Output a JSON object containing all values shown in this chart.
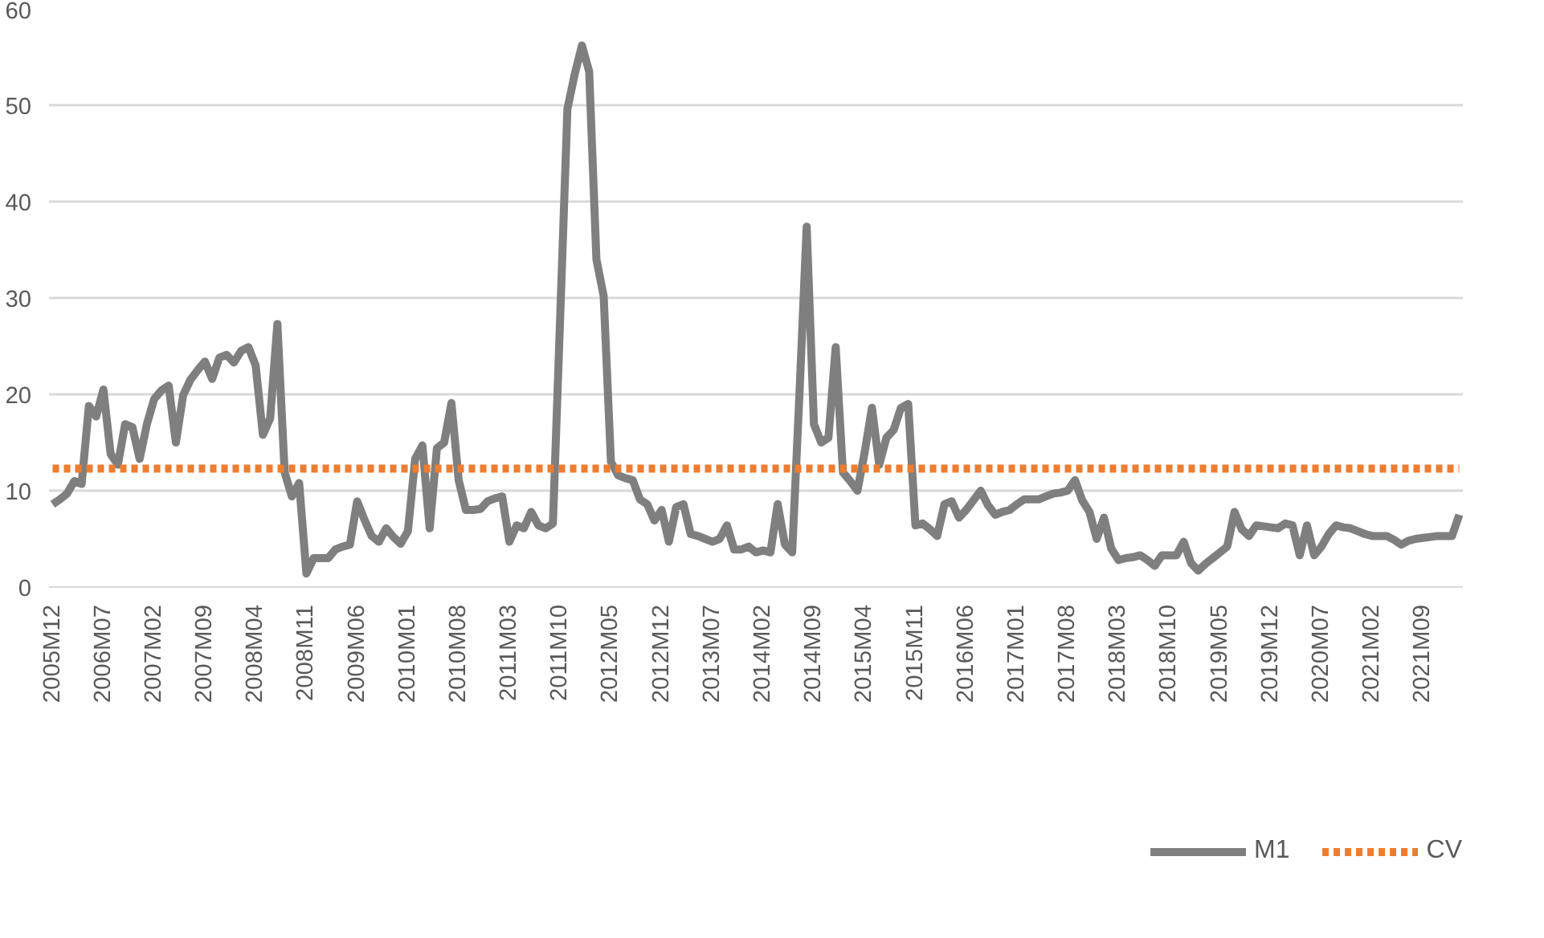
{
  "chart_data": {
    "type": "line",
    "categories": [
      "2005M12",
      null,
      null,
      null,
      null,
      null,
      null,
      "2006M07",
      null,
      null,
      null,
      null,
      null,
      null,
      "2007M02",
      null,
      null,
      null,
      null,
      null,
      null,
      "2007M09",
      null,
      null,
      null,
      null,
      null,
      null,
      "2008M04",
      null,
      null,
      null,
      null,
      null,
      null,
      "2008M11",
      null,
      null,
      null,
      null,
      null,
      null,
      "2009M06",
      null,
      null,
      null,
      null,
      null,
      null,
      "2010M01",
      null,
      null,
      null,
      null,
      null,
      null,
      "2010M08",
      null,
      null,
      null,
      null,
      null,
      null,
      "2011M03",
      null,
      null,
      null,
      null,
      null,
      null,
      "2011M10",
      null,
      null,
      null,
      null,
      null,
      null,
      "2012M05",
      null,
      null,
      null,
      null,
      null,
      null,
      "2012M12",
      null,
      null,
      null,
      null,
      null,
      null,
      "2013M07",
      null,
      null,
      null,
      null,
      null,
      null,
      "2014M02",
      null,
      null,
      null,
      null,
      null,
      null,
      "2014M09",
      null,
      null,
      null,
      null,
      null,
      null,
      "2015M04",
      null,
      null,
      null,
      null,
      null,
      null,
      "2015M11",
      null,
      null,
      null,
      null,
      null,
      null,
      "2016M06",
      null,
      null,
      null,
      null,
      null,
      null,
      "2017M01",
      null,
      null,
      null,
      null,
      null,
      null,
      "2017M08",
      null,
      null,
      null,
      null,
      null,
      null,
      "2018M03",
      null,
      null,
      null,
      null,
      null,
      null,
      "2018M10",
      null,
      null,
      null,
      null,
      null,
      null,
      "2019M05",
      null,
      null,
      null,
      null,
      null,
      null,
      "2019M12",
      null,
      null,
      null,
      null,
      null,
      null,
      "2020M07",
      null,
      null,
      null,
      null,
      null,
      null,
      "2021M02",
      null,
      null,
      null,
      null,
      null,
      null,
      "2021M09",
      null,
      null,
      null,
      null,
      null
    ],
    "series": [
      {
        "name": "M1",
        "color": "#7f7f7f",
        "line_style": "solid",
        "values": [
          8.6,
          9.1,
          9.7,
          11,
          10.7,
          18.8,
          17.7,
          20.5,
          13.8,
          12.7,
          16.9,
          16.6,
          13.3,
          16.9,
          19.5,
          20.4,
          20.9,
          15,
          19.9,
          21.5,
          22.5,
          23.4,
          21.6,
          23.8,
          24.1,
          23.3,
          24.5,
          24.9,
          23,
          15.8,
          17.5,
          27.3,
          11.9,
          9.4,
          10.8,
          1.4,
          3,
          3,
          3,
          3.9,
          4.2,
          4.4,
          8.9,
          7,
          5.3,
          4.7,
          6.1,
          5.2,
          4.5,
          5.8,
          13.3,
          14.7,
          6.1,
          14.4,
          15,
          19.1,
          11.1,
          8,
          8,
          8.1,
          8.9,
          9.2,
          9.4,
          4.7,
          6.4,
          6.1,
          7.8,
          6.4,
          6.1,
          6.6,
          28,
          49.6,
          53.2,
          56.2,
          53.5,
          34,
          30.2,
          13,
          11.6,
          11.3,
          11.1,
          9.1,
          8.6,
          6.9,
          8,
          4.7,
          8.3,
          8.6,
          5.5,
          5.3,
          5,
          4.7,
          5,
          6.4,
          3.9,
          3.9,
          4.2,
          3.6,
          3.8,
          3.6,
          8.6,
          4.4,
          3.6,
          20,
          37.4,
          16.9,
          15,
          15.5,
          24.9,
          11.9,
          11,
          10,
          14,
          18.6,
          12.7,
          15.5,
          16.3,
          18.6,
          19,
          6.4,
          6.6,
          6,
          5.3,
          8.6,
          8.9,
          7.2,
          8,
          9,
          10,
          8.5,
          7.5,
          7.8,
          8,
          8.6,
          9.1,
          9.1,
          9.1,
          9.4,
          9.7,
          9.8,
          10,
          11.1,
          9,
          7.8,
          5,
          7.2,
          4,
          2.8,
          3,
          3.1,
          3.3,
          2.8,
          2.2,
          3.3,
          3.3,
          3.3,
          4.7,
          2.5,
          1.7,
          2.4,
          3,
          3.6,
          4.2,
          7.8,
          6,
          5.3,
          6.4,
          6.3,
          6.2,
          6.1,
          6.6,
          6.4,
          3.3,
          6.4,
          3.3,
          4.2,
          5.5,
          6.4,
          6.2,
          6.1,
          5.8,
          5.5,
          5.3,
          5.3,
          5.3,
          4.9,
          4.4,
          4.8,
          5,
          5.1,
          5.2,
          5.3,
          5.3,
          5.3,
          7.5
        ]
      },
      {
        "name": "CV",
        "color": "#ed7d31",
        "line_style": "dashed",
        "values": [
          12.3,
          12.3,
          12.3,
          12.3,
          12.3,
          12.3,
          12.3,
          12.3,
          12.3,
          12.3,
          12.3,
          12.3,
          12.3,
          12.3,
          12.3,
          12.3,
          12.3,
          12.3,
          12.3,
          12.3,
          12.3,
          12.3,
          12.3,
          12.3,
          12.3,
          12.3,
          12.3,
          12.3,
          12.3,
          12.3,
          12.3,
          12.3,
          12.3,
          12.3,
          12.3,
          12.3,
          12.3,
          12.3,
          12.3,
          12.3,
          12.3,
          12.3,
          12.3,
          12.3,
          12.3,
          12.3,
          12.3,
          12.3,
          12.3,
          12.3,
          12.3,
          12.3,
          12.3,
          12.3,
          12.3,
          12.3,
          12.3,
          12.3,
          12.3,
          12.3,
          12.3,
          12.3,
          12.3,
          12.3,
          12.3,
          12.3,
          12.3,
          12.3,
          12.3,
          12.3,
          12.3,
          12.3,
          12.3,
          12.3,
          12.3,
          12.3,
          12.3,
          12.3,
          12.3,
          12.3,
          12.3,
          12.3,
          12.3,
          12.3,
          12.3,
          12.3,
          12.3,
          12.3,
          12.3,
          12.3,
          12.3,
          12.3,
          12.3,
          12.3,
          12.3,
          12.3,
          12.3,
          12.3,
          12.3,
          12.3,
          12.3,
          12.3,
          12.3,
          12.3,
          12.3,
          12.3,
          12.3,
          12.3,
          12.3,
          12.3,
          12.3,
          12.3,
          12.3,
          12.3,
          12.3,
          12.3,
          12.3,
          12.3,
          12.3,
          12.3,
          12.3,
          12.3,
          12.3,
          12.3,
          12.3,
          12.3,
          12.3,
          12.3,
          12.3,
          12.3,
          12.3,
          12.3,
          12.3,
          12.3,
          12.3,
          12.3,
          12.3,
          12.3,
          12.3,
          12.3,
          12.3,
          12.3,
          12.3,
          12.3,
          12.3,
          12.3,
          12.3,
          12.3,
          12.3,
          12.3,
          12.3,
          12.3,
          12.3,
          12.3,
          12.3,
          12.3,
          12.3,
          12.3,
          12.3,
          12.3,
          12.3,
          12.3,
          12.3,
          12.3,
          12.3,
          12.3,
          12.3,
          12.3,
          12.3,
          12.3,
          12.3,
          12.3,
          12.3,
          12.3,
          12.3,
          12.3,
          12.3,
          12.3,
          12.3,
          12.3,
          12.3,
          12.3,
          12.3,
          12.3,
          12.3,
          12.3,
          12.3,
          12.3,
          12.3,
          12.3,
          12.3,
          12.3,
          12.3,
          12.3,
          12.3
        ]
      }
    ],
    "ylim": [
      0,
      60
    ],
    "yticks": [
      0,
      10,
      20,
      30,
      40,
      50,
      60
    ],
    "grid": "y",
    "legend": "bottom"
  }
}
